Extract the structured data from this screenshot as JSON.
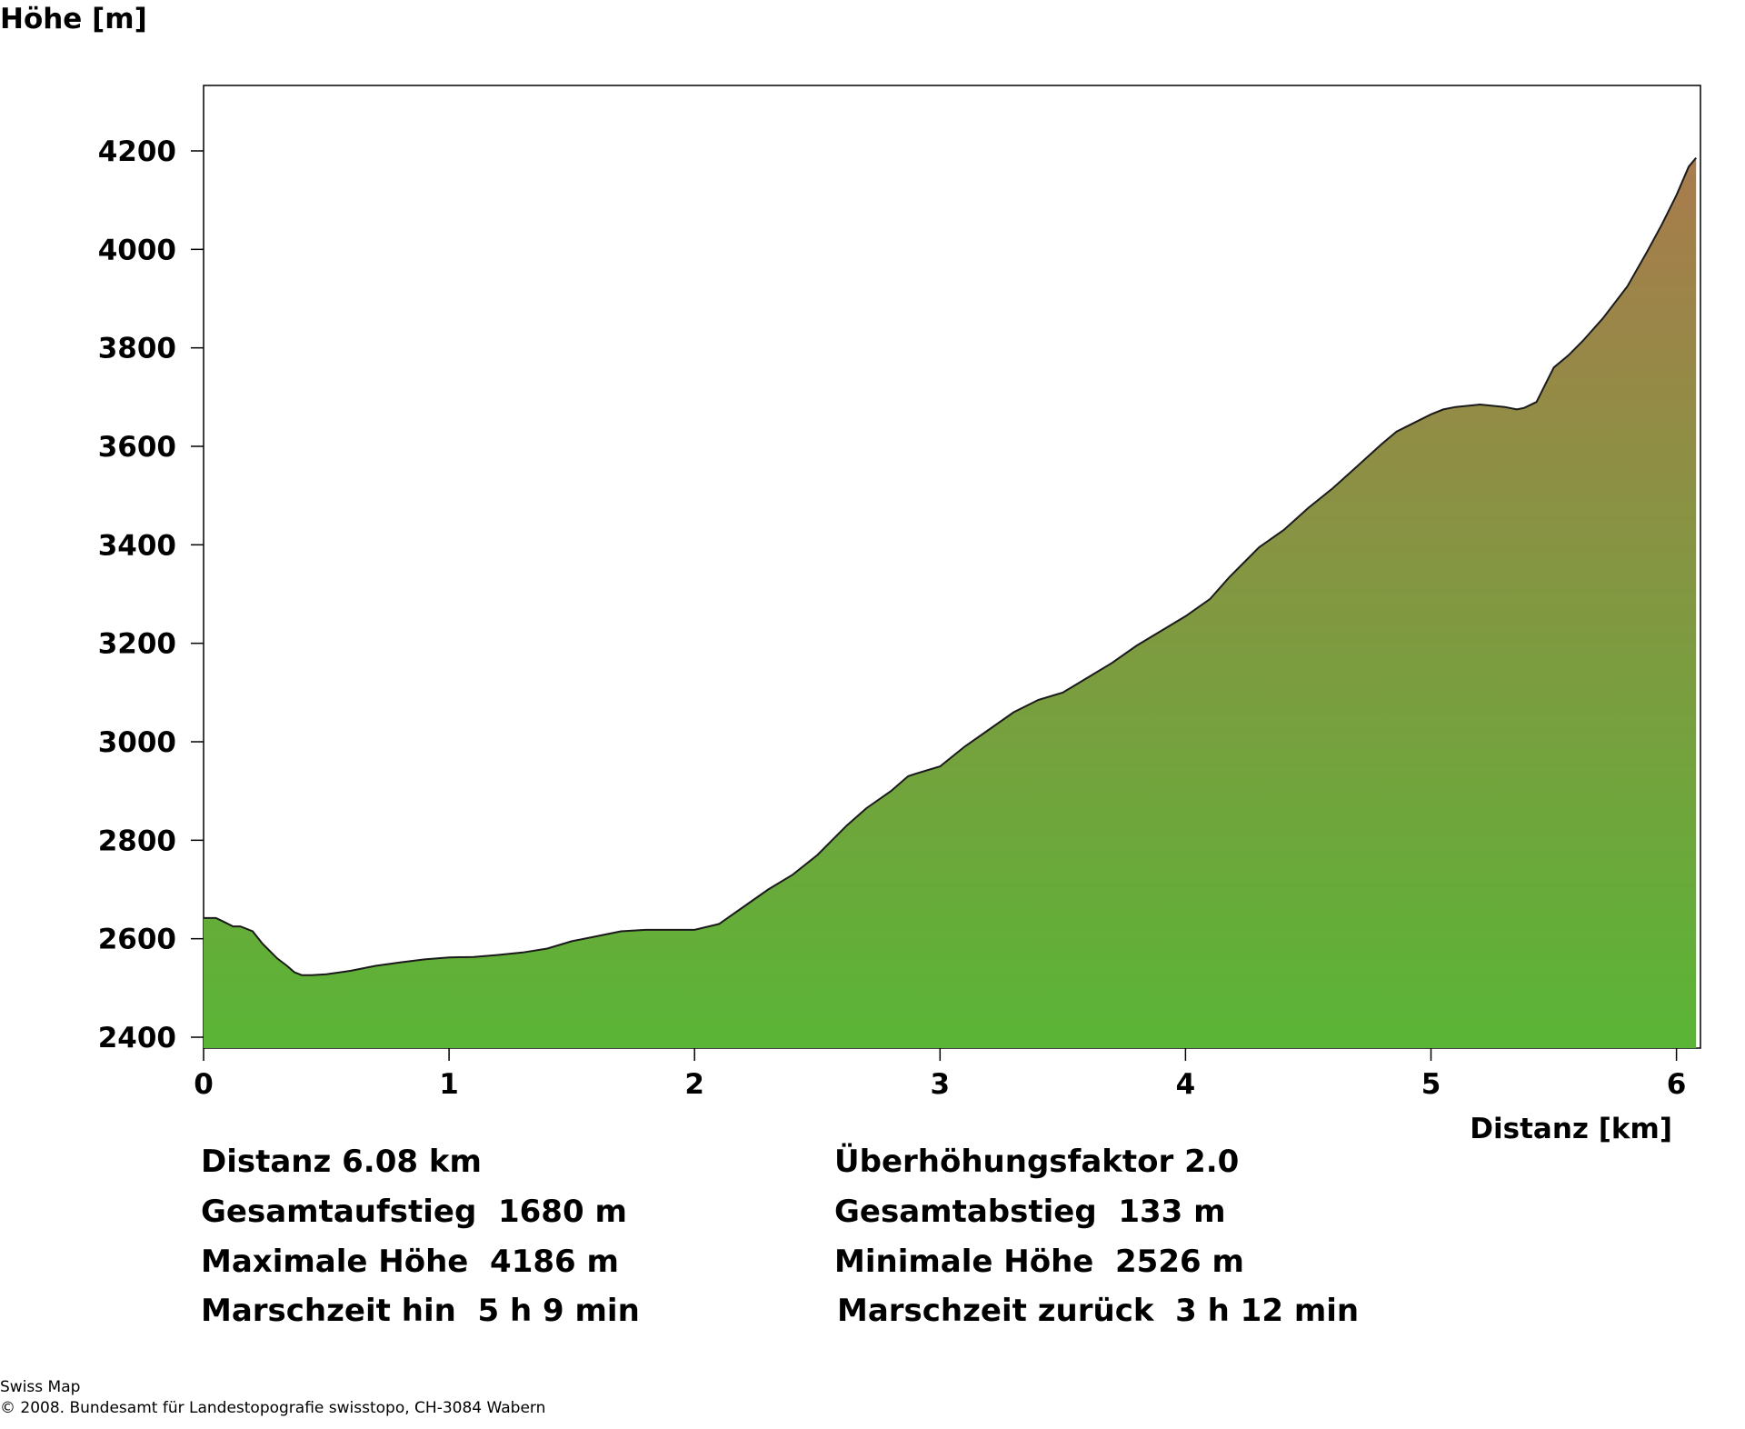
{
  "chart_data": {
    "type": "area",
    "title": "",
    "xlabel": "Distanz [km]",
    "ylabel": "Höhe [m]",
    "xlim": [
      0,
      6.08
    ],
    "ylim": [
      2375,
      4335
    ],
    "x_ticks": [
      "0",
      "1",
      "2",
      "3",
      "4",
      "5",
      "6"
    ],
    "y_ticks": [
      "2400",
      "2600",
      "2800",
      "3000",
      "3200",
      "3400",
      "3600",
      "3800",
      "4000",
      "4200"
    ],
    "grid": false,
    "legend": "none",
    "fill_gradient": [
      "#5ab536",
      "#a97b4c"
    ],
    "series": [
      {
        "x": [
          0,
          0.05,
          0.08,
          0.12,
          0.15,
          0.2,
          0.24,
          0.26,
          0.3,
          0.34,
          0.37,
          0.4,
          0.44,
          0.5,
          0.6,
          0.7,
          0.8,
          0.9,
          1.0,
          1.1,
          1.2,
          1.3,
          1.4,
          1.5,
          1.6,
          1.7,
          1.8,
          1.9,
          2.0,
          2.1,
          2.2,
          2.3,
          2.4,
          2.5,
          2.56,
          2.62,
          2.7,
          2.8,
          2.87,
          2.9,
          3.0,
          3.1,
          3.2,
          3.3,
          3.4,
          3.5,
          3.6,
          3.7,
          3.8,
          3.9,
          4.0,
          4.1,
          4.18,
          4.23,
          4.3,
          4.4,
          4.5,
          4.6,
          4.7,
          4.8,
          4.86,
          4.9,
          5.0,
          5.05,
          5.1,
          5.2,
          5.3,
          5.35,
          5.38,
          5.43,
          5.47,
          5.5,
          5.56,
          5.62,
          5.7,
          5.8,
          5.88,
          5.94,
          6.0,
          6.05,
          6.08
        ],
        "values": [
          2642,
          2642,
          2635,
          2625,
          2625,
          2615,
          2590,
          2580,
          2560,
          2545,
          2532,
          2526,
          2526,
          2528,
          2535,
          2545,
          2552,
          2558,
          2562,
          2563,
          2567,
          2572,
          2580,
          2595,
          2605,
          2615,
          2618,
          2618,
          2618,
          2630,
          2665,
          2700,
          2730,
          2770,
          2800,
          2830,
          2865,
          2900,
          2930,
          2935,
          2950,
          2990,
          3025,
          3060,
          3085,
          3100,
          3130,
          3160,
          3195,
          3225,
          3255,
          3290,
          3335,
          3360,
          3395,
          3430,
          3475,
          3515,
          3560,
          3605,
          3630,
          3640,
          3665,
          3675,
          3680,
          3685,
          3680,
          3675,
          3678,
          3690,
          3730,
          3760,
          3785,
          3815,
          3860,
          3925,
          3995,
          4050,
          4110,
          4168,
          4186
        ]
      }
    ]
  },
  "stats": {
    "distance": "Distanz 6.08 km",
    "exaggeration": "Überhöhungsfaktor 2.0",
    "ascent": "Gesamtaufstieg  1680 m",
    "descent": "Gesamtabstieg  133 m",
    "max_height": "Maximale Höhe  4186 m",
    "min_height": "Minimale Höhe  2526 m",
    "time_forward": "Marschzeit hin  5 h 9 min",
    "time_back": "Marschzeit zurück  3 h 12 min"
  },
  "credits": {
    "line1": "Swiss Map",
    "line2": "© 2008. Bundesamt für Landestopografie swisstopo, CH-3084 Wabern"
  }
}
